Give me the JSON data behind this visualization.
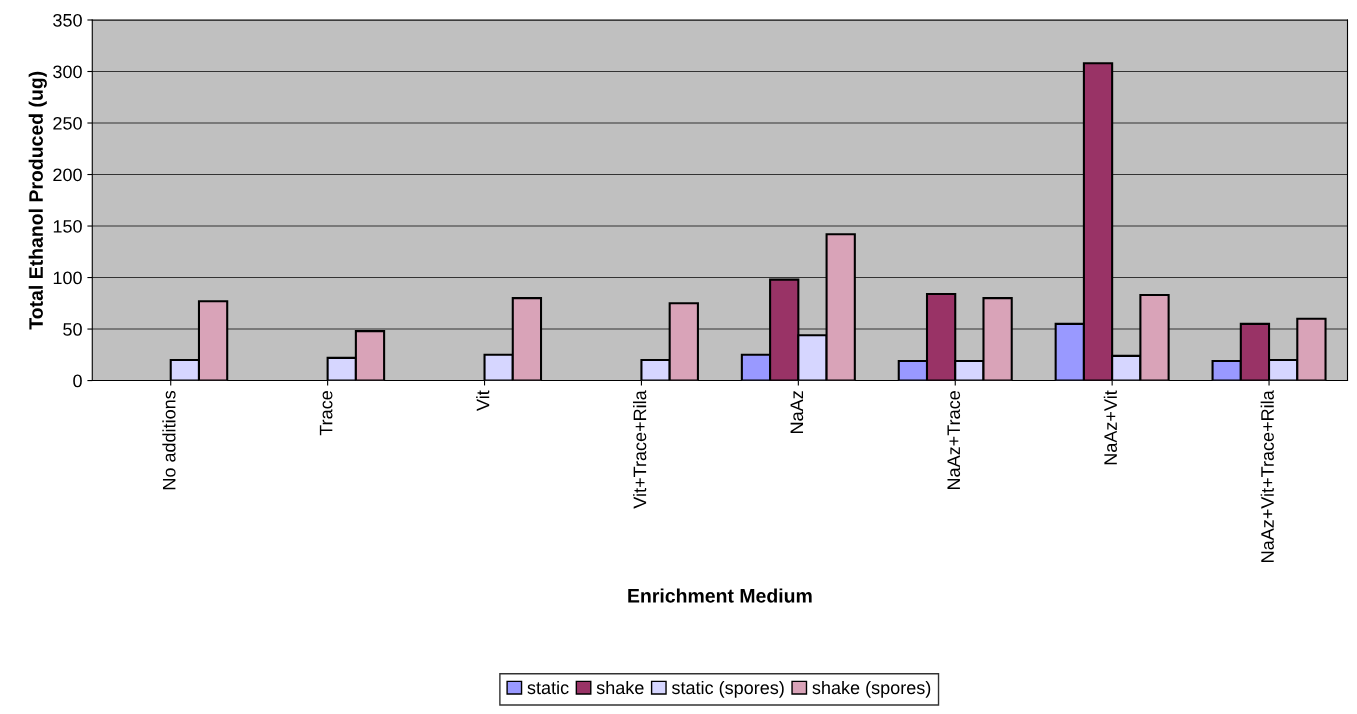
{
  "chart_data": {
    "type": "bar",
    "xlabel": "Enrichment Medium",
    "ylabel": "Total Ethanol Produced (ug)",
    "categories": [
      "No additions",
      "Trace",
      "Vit",
      "Vit+Trace+Rila",
      "NaAz",
      "NaAz+Trace",
      "NaAz+Vit",
      "NaAz+Vit+Trace+Rila"
    ],
    "series": [
      {
        "name": "static",
        "color": "#9999ff",
        "values": [
          null,
          null,
          null,
          null,
          25,
          19,
          55,
          19
        ]
      },
      {
        "name": "shake",
        "color": "#993366",
        "values": [
          null,
          null,
          null,
          null,
          98,
          84,
          308,
          55
        ]
      },
      {
        "name": "static (spores)",
        "color": "#d6d6ff",
        "values": [
          20,
          22,
          25,
          20,
          44,
          19,
          24,
          20
        ]
      },
      {
        "name": "shake (spores)",
        "color": "#d9a3b8",
        "values": [
          77,
          48,
          80,
          75,
          142,
          80,
          83,
          60
        ]
      }
    ],
    "ylim": [
      0,
      350
    ],
    "yticks": [
      0,
      50,
      100,
      150,
      200,
      250,
      300,
      350
    ],
    "grid": "y",
    "legend": "bottom"
  }
}
